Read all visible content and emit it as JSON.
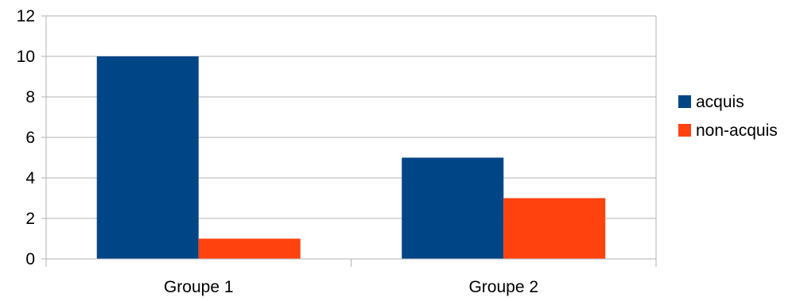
{
  "chart_data": {
    "type": "bar",
    "title": "",
    "xlabel": "",
    "ylabel": "",
    "categories": [
      "Groupe 1",
      "Groupe 2"
    ],
    "series": [
      {
        "name": "acquis",
        "values": [
          10,
          5
        ],
        "color": "#004586"
      },
      {
        "name": "non-acquis",
        "values": [
          1,
          3
        ],
        "color": "#ff420e"
      }
    ],
    "ylim": [
      0,
      12
    ],
    "yticks": [
      "0",
      "2",
      "4",
      "6",
      "8",
      "10",
      "12"
    ],
    "grid": true,
    "legend_position": "right"
  }
}
